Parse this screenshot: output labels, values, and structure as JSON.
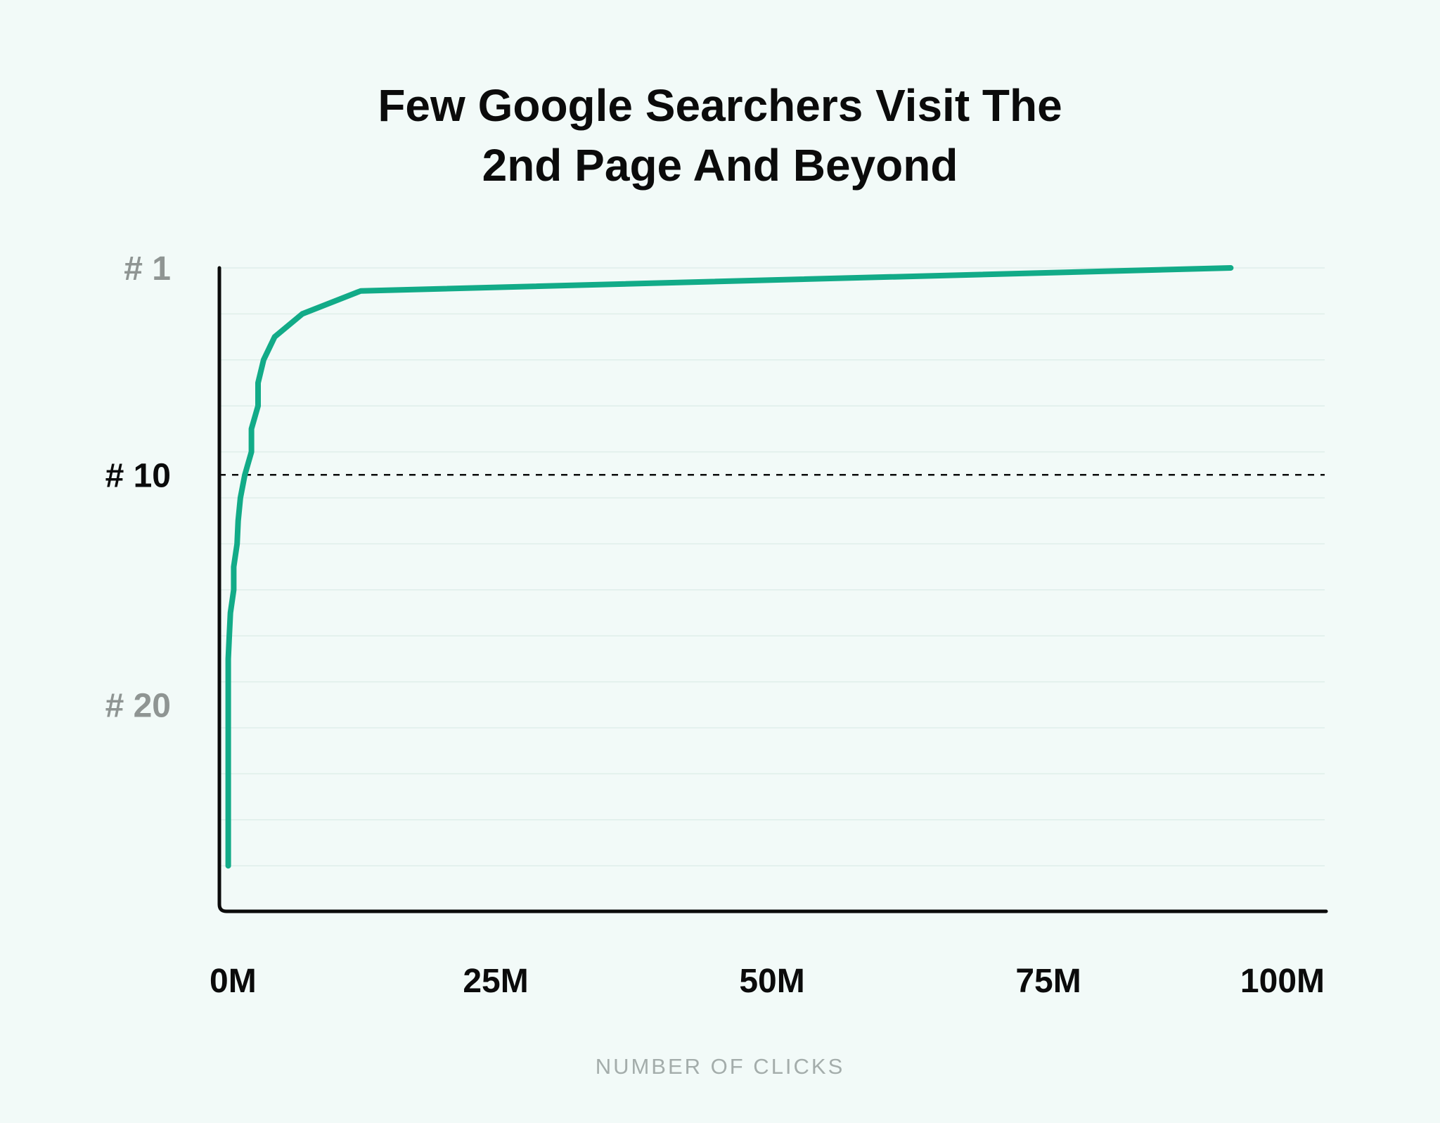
{
  "colors": {
    "background": "#f2faf8",
    "line": "#12ab88",
    "axis": "#0b0b0b",
    "grid": "#dfeeea",
    "muted_tick": "#8f9593",
    "highlight_tick": "#0b0b0b",
    "xlabel": "#a4adab"
  },
  "chart_data": {
    "type": "line",
    "title_lines": [
      "Few Google Searchers Visit The",
      "2nd Page And Beyond"
    ],
    "xlabel": "NUMBER OF CLICKS",
    "ylabel": "",
    "xlim": [
      0,
      100
    ],
    "x_unit": "M clicks",
    "ylim": [
      1,
      29
    ],
    "y_inverted": true,
    "grid": true,
    "grid_positions": [
      1,
      3,
      5,
      7,
      9,
      11,
      13,
      15,
      17,
      19,
      21,
      23,
      25,
      27
    ],
    "x_ticks": [
      {
        "value": 0,
        "label": "0M"
      },
      {
        "value": 25,
        "label": "25M"
      },
      {
        "value": 50,
        "label": "50M"
      },
      {
        "value": 75,
        "label": "75M"
      },
      {
        "value": 100,
        "label": "100M"
      }
    ],
    "y_ticks": [
      {
        "value": 1,
        "label": "# 1",
        "emphasis": false
      },
      {
        "value": 10,
        "label": "# 10",
        "emphasis": true
      },
      {
        "value": 20,
        "label": "# 20",
        "emphasis": false
      }
    ],
    "reference_line": {
      "y": 10,
      "style": "dashed"
    },
    "series": [
      {
        "points": [
          [
            91.5,
            1
          ],
          [
            12.8,
            2
          ],
          [
            7.5,
            3
          ],
          [
            5.0,
            4
          ],
          [
            4.0,
            5
          ],
          [
            3.5,
            6
          ],
          [
            3.5,
            7
          ],
          [
            2.9,
            8
          ],
          [
            2.9,
            9
          ],
          [
            2.3,
            10
          ],
          [
            1.9,
            11
          ],
          [
            1.7,
            12
          ],
          [
            1.6,
            13
          ],
          [
            1.3,
            14
          ],
          [
            1.3,
            15
          ],
          [
            1.0,
            16
          ],
          [
            0.9,
            17
          ],
          [
            0.8,
            18
          ],
          [
            0.8,
            19
          ],
          [
            0.8,
            20
          ],
          [
            0.8,
            21
          ],
          [
            0.8,
            22
          ],
          [
            0.8,
            23
          ],
          [
            0.8,
            24
          ],
          [
            0.8,
            25
          ],
          [
            0.8,
            26
          ],
          [
            0.8,
            27
          ]
        ]
      }
    ]
  }
}
